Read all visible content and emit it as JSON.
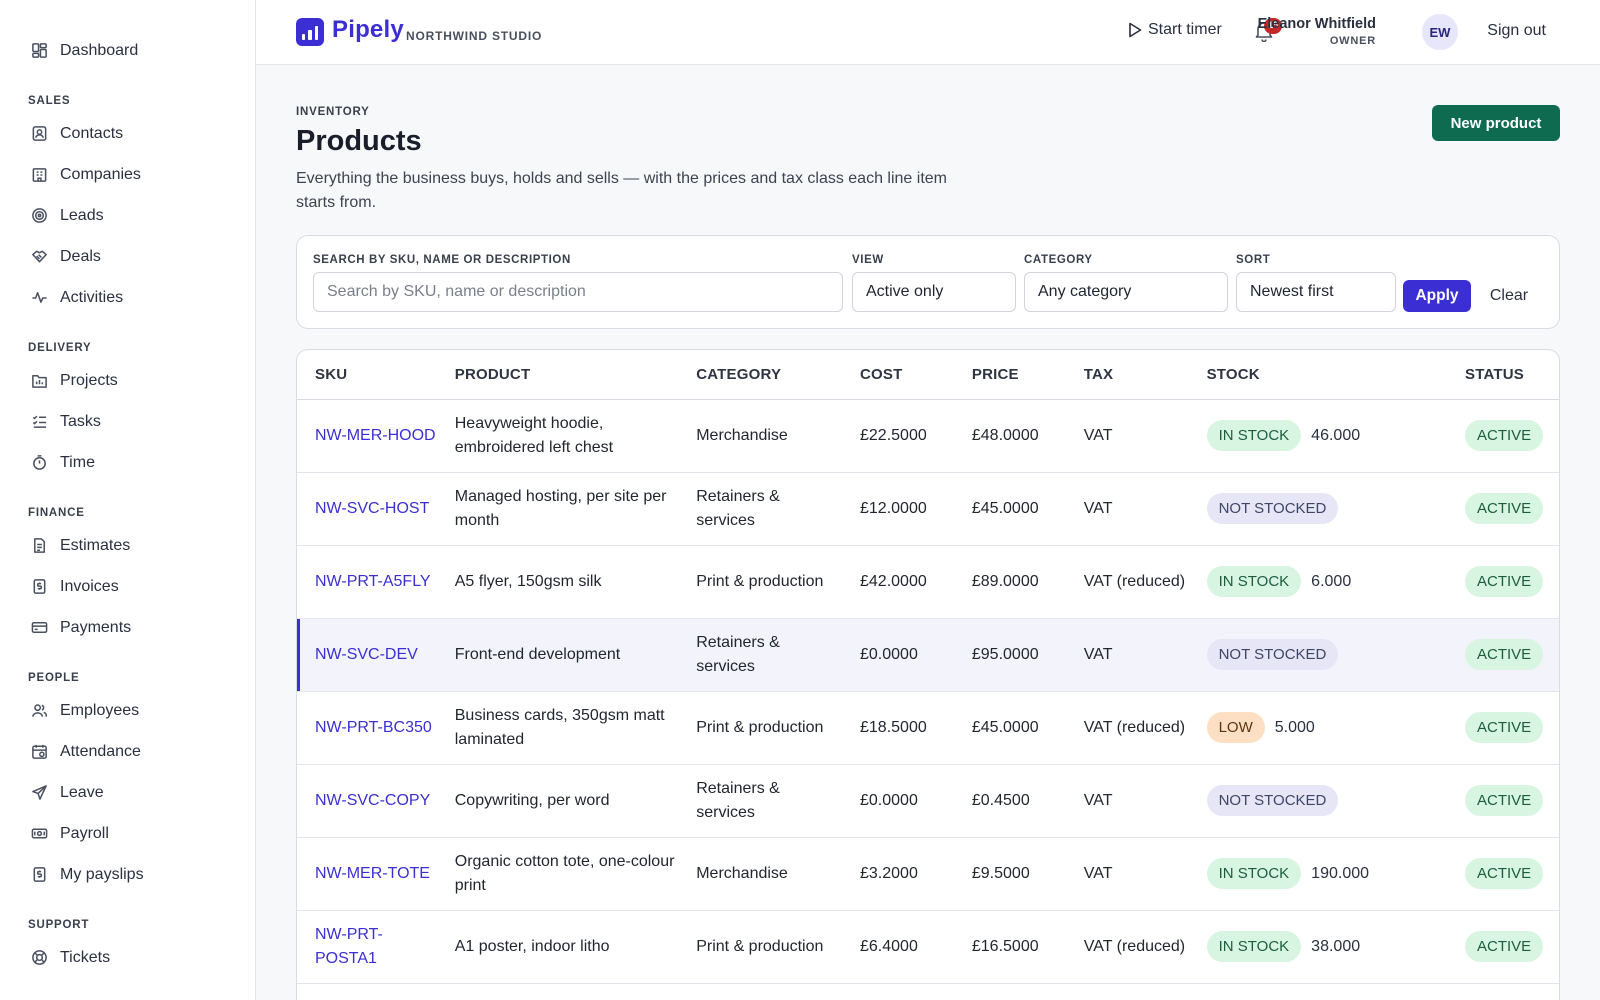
{
  "sidebar": {
    "top": [
      {
        "label": "Dashboard",
        "icon": "dashboard-icon"
      }
    ],
    "sections": [
      {
        "title": "SALES",
        "items": [
          {
            "label": "Contacts",
            "icon": "contacts-icon"
          },
          {
            "label": "Companies",
            "icon": "companies-icon"
          },
          {
            "label": "Leads",
            "icon": "leads-icon"
          },
          {
            "label": "Deals",
            "icon": "deals-icon"
          },
          {
            "label": "Activities",
            "icon": "activities-icon"
          }
        ]
      },
      {
        "title": "DELIVERY",
        "items": [
          {
            "label": "Projects",
            "icon": "projects-icon"
          },
          {
            "label": "Tasks",
            "icon": "tasks-icon"
          },
          {
            "label": "Time",
            "icon": "stopwatch-icon"
          }
        ]
      },
      {
        "title": "FINANCE",
        "items": [
          {
            "label": "Estimates",
            "icon": "estimates-icon"
          },
          {
            "label": "Invoices",
            "icon": "invoices-icon"
          },
          {
            "label": "Payments",
            "icon": "card-icon"
          }
        ]
      },
      {
        "title": "PEOPLE",
        "items": [
          {
            "label": "Employees",
            "icon": "employees-icon"
          },
          {
            "label": "Attendance",
            "icon": "attendance-icon"
          },
          {
            "label": "Leave",
            "icon": "plane-icon"
          },
          {
            "label": "Payroll",
            "icon": "payroll-icon"
          },
          {
            "label": "My payslips",
            "icon": "payslip-icon"
          }
        ]
      },
      {
        "title": "SUPPORT",
        "items": [
          {
            "label": "Tickets",
            "icon": "lifebuoy-icon"
          }
        ]
      }
    ]
  },
  "header": {
    "brand": "Pipely",
    "org": "NORTHWIND STUDIO",
    "timer_label": "Start timer",
    "notification_count": "15",
    "user_name": "Eleanor Whitfield",
    "user_role": "OWNER",
    "avatar_initials": "EW",
    "signout_label": "Sign out"
  },
  "page": {
    "eyebrow": "INVENTORY",
    "title": "Products",
    "description": "Everything the business buys, holds and sells — with the prices and tax class each line item starts from.",
    "new_button": "New product"
  },
  "filters": {
    "search_label": "SEARCH BY SKU, NAME OR DESCRIPTION",
    "search_placeholder": "Search by SKU, name or description",
    "view_label": "VIEW",
    "view_value": "Active only",
    "category_label": "CATEGORY",
    "category_value": "Any category",
    "sort_label": "SORT",
    "sort_value": "Newest first",
    "apply_label": "Apply",
    "clear_label": "Clear"
  },
  "table": {
    "columns": [
      "SKU",
      "PRODUCT",
      "CATEGORY",
      "COST",
      "PRICE",
      "TAX",
      "STOCK",
      "STATUS"
    ],
    "rows": [
      {
        "sku": "NW-MER-HOOD",
        "product": "Heavyweight hoodie, embroidered left chest",
        "category": "Merchandise",
        "cost": "£22.5000",
        "price": "£48.0000",
        "tax": "VAT",
        "stock_status": "IN STOCK",
        "stock_kind": "in",
        "stock_qty": "46.000",
        "status": "ACTIVE"
      },
      {
        "sku": "NW-SVC-HOST",
        "product": "Managed hosting, per site per month",
        "category": "Retainers & services",
        "cost": "£12.0000",
        "price": "£45.0000",
        "tax": "VAT",
        "stock_status": "NOT STOCKED",
        "stock_kind": "not",
        "stock_qty": "",
        "status": "ACTIVE"
      },
      {
        "sku": "NW-PRT-A5FLY",
        "product": "A5 flyer, 150gsm silk",
        "category": "Print & production",
        "cost": "£42.0000",
        "price": "£89.0000",
        "tax": "VAT (reduced)",
        "stock_status": "IN STOCK",
        "stock_kind": "in",
        "stock_qty": "6.000",
        "status": "ACTIVE"
      },
      {
        "sku": "NW-SVC-DEV",
        "product": "Front-end development",
        "category": "Retainers & services",
        "cost": "£0.0000",
        "price": "£95.0000",
        "tax": "VAT",
        "stock_status": "NOT STOCKED",
        "stock_kind": "not",
        "stock_qty": "",
        "status": "ACTIVE",
        "highlighted": true
      },
      {
        "sku": "NW-PRT-BC350",
        "product": "Business cards, 350gsm matt laminated",
        "category": "Print & production",
        "cost": "£18.5000",
        "price": "£45.0000",
        "tax": "VAT (reduced)",
        "stock_status": "LOW",
        "stock_kind": "low",
        "stock_qty": "5.000",
        "status": "ACTIVE"
      },
      {
        "sku": "NW-SVC-COPY",
        "product": "Copywriting, per word",
        "category": "Retainers & services",
        "cost": "£0.0000",
        "price": "£0.4500",
        "tax": "VAT",
        "stock_status": "NOT STOCKED",
        "stock_kind": "not",
        "stock_qty": "",
        "status": "ACTIVE"
      },
      {
        "sku": "NW-MER-TOTE",
        "product": "Organic cotton tote, one-colour print",
        "category": "Merchandise",
        "cost": "£3.2000",
        "price": "£9.5000",
        "tax": "VAT",
        "stock_status": "IN STOCK",
        "stock_kind": "in",
        "stock_qty": "190.000",
        "status": "ACTIVE"
      },
      {
        "sku": "NW-PRT-POSTA1",
        "product": "A1 poster, indoor litho",
        "category": "Print & production",
        "cost": "£6.4000",
        "price": "£16.5000",
        "tax": "VAT (reduced)",
        "stock_status": "IN STOCK",
        "stock_kind": "in",
        "stock_qty": "38.000",
        "status": "ACTIVE"
      }
    ]
  },
  "colors": {
    "accent": "#3b2fd3",
    "primary_button": "#0f6b4f",
    "badge": "#c62828"
  }
}
